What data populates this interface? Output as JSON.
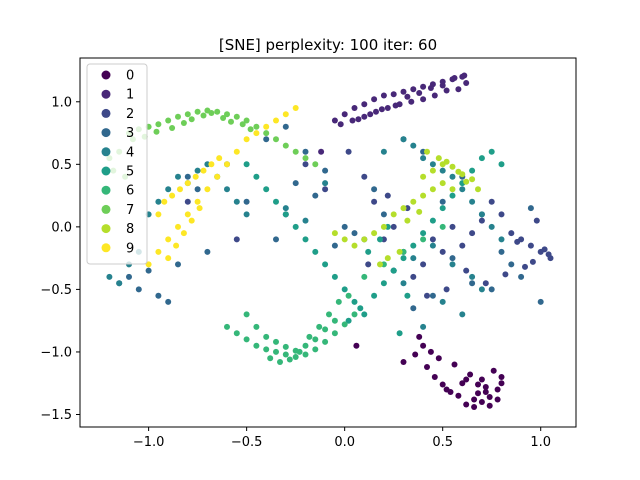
{
  "chart_data": {
    "type": "scatter",
    "title": "[SNE] perplexity: 100 iter: 60",
    "xlabel": "",
    "ylabel": "",
    "xlim": [
      -1.35,
      1.18
    ],
    "ylim": [
      -1.6,
      1.35
    ],
    "xticks": [
      -1.0,
      -0.5,
      0.0,
      0.5,
      1.0
    ],
    "xtick_labels": [
      "−1.0",
      "−0.5",
      "0.0",
      "0.5",
      "1.0"
    ],
    "yticks": [
      -1.5,
      -1.0,
      -0.5,
      0.0,
      0.5,
      1.0
    ],
    "ytick_labels": [
      "−1.5",
      "−1.0",
      "−0.5",
      "0.0",
      "0.5",
      "1.0"
    ],
    "grid": false,
    "legend_position": "top-left",
    "series": [
      {
        "name": "0",
        "color": "#440154",
        "x": [
          0.62,
          0.7,
          0.74,
          0.78,
          0.66,
          0.58,
          0.52,
          0.8,
          0.72,
          0.68,
          0.6,
          0.76,
          0.7,
          0.64,
          0.56,
          0.48,
          0.44,
          0.4,
          0.36,
          0.42,
          0.46,
          0.5,
          0.54,
          0.66,
          0.74,
          0.8,
          0.78,
          0.72,
          0.68,
          0.62,
          0.06,
          0.3,
          0.38
        ],
        "y": [
          -1.42,
          -1.4,
          -1.36,
          -1.3,
          -1.38,
          -1.35,
          -1.3,
          -1.2,
          -1.28,
          -1.33,
          -1.25,
          -1.15,
          -1.22,
          -1.18,
          -1.1,
          -1.05,
          -1.0,
          -0.95,
          -1.02,
          -1.12,
          -1.2,
          -1.26,
          -1.32,
          -1.44,
          -1.43,
          -1.25,
          -1.38,
          -1.32,
          -1.26,
          -1.22,
          -0.95,
          -1.08,
          -0.88
        ]
      },
      {
        "name": "1",
        "color": "#482878",
        "x": [
          -0.05,
          0.0,
          0.05,
          0.1,
          0.15,
          0.2,
          0.25,
          0.3,
          0.35,
          0.4,
          0.45,
          0.5,
          0.55,
          0.6,
          0.62,
          0.58,
          0.52,
          0.46,
          0.4,
          0.34,
          0.28,
          0.22,
          0.16,
          0.1,
          0.04,
          -0.02,
          0.07,
          0.13,
          0.19,
          0.26,
          0.32,
          0.38,
          0.44,
          0.5,
          0.56,
          0.61,
          -0.12
        ],
        "y": [
          0.85,
          0.9,
          0.95,
          0.98,
          1.02,
          1.05,
          1.06,
          1.08,
          1.1,
          1.12,
          1.14,
          1.16,
          1.18,
          1.2,
          1.15,
          1.1,
          1.09,
          1.05,
          1.02,
          1.0,
          0.98,
          0.95,
          0.92,
          0.88,
          0.85,
          0.82,
          0.86,
          0.9,
          0.94,
          0.97,
          1.04,
          1.07,
          1.11,
          1.13,
          1.19,
          1.21,
          0.6
        ]
      },
      {
        "name": "2",
        "color": "#3e4989",
        "x": [
          0.85,
          0.9,
          0.95,
          1.0,
          1.05,
          1.02,
          0.96,
          0.92,
          0.88,
          0.8,
          0.75,
          0.7,
          0.65,
          0.6,
          0.55,
          0.5,
          0.45,
          0.4,
          0.35,
          0.3,
          0.25,
          0.2,
          0.15,
          0.1,
          -0.1,
          -0.3,
          -0.55,
          -0.8,
          0.98,
          1.04,
          0.82,
          0.72,
          0.62,
          0.52,
          0.42,
          0.32,
          0.22,
          0.12,
          0.02,
          -0.2
        ],
        "y": [
          -0.05,
          -0.1,
          -0.15,
          -0.2,
          -0.25,
          -0.18,
          -0.28,
          -0.32,
          -0.12,
          0.1,
          0.2,
          0.05,
          -0.05,
          -0.15,
          0.0,
          -0.2,
          -0.1,
          -0.3,
          -0.4,
          -0.2,
          0.0,
          -0.1,
          0.2,
          0.4,
          0.3,
          0.1,
          -0.1,
          0.2,
          0.05,
          -0.22,
          -0.38,
          -0.45,
          -0.35,
          -0.5,
          -0.55,
          0.15,
          0.25,
          -0.3,
          0.6,
          0.5
        ]
      },
      {
        "name": "3",
        "color": "#31688e",
        "x": [
          -1.15,
          -1.1,
          -1.05,
          -1.0,
          -0.95,
          -0.9,
          -0.85,
          -0.8,
          -0.75,
          -0.7,
          -0.6,
          -0.5,
          -0.4,
          -0.3,
          -0.2,
          -0.1,
          0.0,
          0.1,
          0.2,
          0.3,
          0.4,
          0.5,
          0.6,
          0.7,
          0.8,
          0.9,
          0.95,
          1.0,
          0.85,
          0.75,
          0.65,
          0.55,
          0.45,
          0.35,
          0.25,
          0.15,
          0.05,
          -0.05,
          -0.15,
          -0.25,
          -0.35
        ],
        "y": [
          -0.45,
          -0.4,
          -0.5,
          -0.35,
          -0.55,
          -0.6,
          -0.3,
          0.4,
          0.3,
          -0.2,
          0.5,
          0.2,
          0.7,
          0.8,
          0.6,
          0.45,
          0.0,
          -0.1,
          0.1,
          0.7,
          0.6,
          0.2,
          0.4,
          0.1,
          -0.2,
          -0.4,
          0.15,
          -0.6,
          -0.3,
          -0.5,
          -0.45,
          -0.25,
          -0.55,
          -0.65,
          -0.35,
          0.3,
          -0.05,
          -0.15,
          0.25,
          0.35,
          -0.1
        ]
      },
      {
        "name": "4",
        "color": "#26828e",
        "x": [
          -1.2,
          -1.15,
          -1.1,
          -1.05,
          -1.0,
          -0.95,
          -0.9,
          -0.85,
          -0.8,
          -0.75,
          -0.7,
          -0.65,
          -0.6,
          -0.55,
          -0.5,
          0.2,
          0.3,
          0.35,
          0.4,
          0.45,
          0.5,
          0.55,
          0.6,
          0.65,
          0.7,
          0.75,
          0.8,
          0.7,
          0.6,
          0.5,
          0.4,
          0.3,
          0.25,
          0.35,
          0.45,
          0.55,
          0.65,
          -0.3,
          -0.2,
          -0.1
        ],
        "y": [
          -0.4,
          -0.45,
          -0.3,
          -0.2,
          0.1,
          0.2,
          0.3,
          0.4,
          0.35,
          0.45,
          0.5,
          0.4,
          0.3,
          0.2,
          0.1,
          0.6,
          0.7,
          0.65,
          0.55,
          0.5,
          0.45,
          0.4,
          0.3,
          0.2,
          0.1,
          0.0,
          -0.1,
          -0.5,
          -0.7,
          -0.6,
          -0.8,
          -0.45,
          -0.35,
          -0.25,
          -0.15,
          -0.3,
          -0.4,
          0.15,
          0.05,
          0.35
        ]
      },
      {
        "name": "5",
        "color": "#1f9e89",
        "x": [
          -0.1,
          -0.05,
          0.0,
          0.05,
          0.1,
          0.15,
          0.2,
          0.25,
          0.3,
          0.35,
          0.4,
          0.45,
          0.5,
          0.55,
          0.6,
          0.65,
          0.7,
          0.75,
          0.8,
          -0.15,
          -0.2,
          -0.25,
          -0.3,
          -0.35,
          -0.4,
          -0.45,
          -0.5,
          0.02,
          0.08,
          0.12,
          0.18,
          0.22,
          0.28,
          0.32
        ],
        "y": [
          -0.3,
          -0.4,
          -0.5,
          -0.6,
          -0.7,
          -0.55,
          -0.45,
          -0.35,
          -0.25,
          -0.15,
          -0.05,
          0.05,
          0.15,
          0.25,
          0.35,
          0.45,
          0.55,
          0.6,
          0.5,
          -0.2,
          -0.1,
          0.0,
          0.1,
          0.2,
          0.3,
          0.4,
          0.5,
          -0.75,
          -0.65,
          -0.2,
          -0.1,
          0.0,
          -0.85,
          -0.55
        ]
      },
      {
        "name": "6",
        "color": "#35b779",
        "x": [
          -0.55,
          -0.5,
          -0.45,
          -0.4,
          -0.35,
          -0.3,
          -0.25,
          -0.2,
          -0.15,
          -0.1,
          -0.05,
          0.0,
          0.05,
          -0.45,
          -0.4,
          -0.35,
          -0.3,
          -0.25,
          -0.2,
          -0.15,
          -0.1,
          -0.05,
          -0.38,
          -0.33,
          -0.28,
          -0.23,
          -0.18,
          -0.13,
          -0.08,
          -0.03,
          0.02,
          -0.6,
          -0.5,
          0.1,
          0.2,
          0.3,
          0.4,
          0.5
        ],
        "y": [
          -0.85,
          -0.9,
          -0.95,
          -0.98,
          -1.0,
          -1.02,
          -1.04,
          -1.02,
          -0.98,
          -0.92,
          -0.85,
          -0.78,
          -0.7,
          -0.8,
          -0.88,
          -0.92,
          -0.96,
          -0.99,
          -0.95,
          -0.9,
          -0.82,
          -0.75,
          -1.05,
          -1.08,
          -1.06,
          -1.0,
          -0.88,
          -0.8,
          -0.7,
          -0.6,
          -0.55,
          -0.8,
          -0.7,
          -0.4,
          -0.3,
          -0.2,
          -0.1,
          0.0
        ]
      },
      {
        "name": "7",
        "color": "#6ece58",
        "x": [
          -1.1,
          -1.05,
          -1.0,
          -0.95,
          -0.9,
          -0.85,
          -0.8,
          -0.75,
          -0.7,
          -0.65,
          -0.6,
          -0.55,
          -0.5,
          -0.45,
          -0.4,
          -0.35,
          -0.3,
          -0.25,
          -0.2,
          -0.15,
          -1.08,
          -1.02,
          -0.96,
          -0.88,
          -0.82,
          -0.78,
          -0.72,
          -0.68,
          -0.62,
          -0.58,
          -0.52,
          -0.48,
          -1.15,
          -1.2,
          -1.18,
          -1.12
        ],
        "y": [
          0.75,
          0.78,
          0.8,
          0.82,
          0.85,
          0.88,
          0.9,
          0.92,
          0.93,
          0.92,
          0.9,
          0.88,
          0.85,
          0.8,
          0.75,
          0.7,
          0.65,
          0.6,
          0.55,
          0.5,
          0.7,
          0.72,
          0.76,
          0.79,
          0.83,
          0.86,
          0.89,
          0.91,
          0.87,
          0.84,
          0.82,
          0.78,
          0.6,
          0.55,
          0.45,
          0.4
        ]
      },
      {
        "name": "8",
        "color": "#b5de2b",
        "x": [
          0.4,
          0.45,
          0.5,
          0.55,
          0.6,
          0.65,
          0.55,
          0.5,
          0.45,
          0.4,
          0.35,
          0.3,
          0.25,
          0.2,
          0.15,
          0.1,
          0.05,
          0.0,
          -0.05,
          0.48,
          0.52,
          0.58,
          0.62,
          0.68,
          0.42,
          0.38,
          0.32,
          0.28,
          0.22,
          0.18
        ],
        "y": [
          0.4,
          0.45,
          0.5,
          0.48,
          0.42,
          0.38,
          0.3,
          0.35,
          0.3,
          0.25,
          0.2,
          0.15,
          0.1,
          0.0,
          -0.05,
          -0.1,
          -0.15,
          -0.1,
          -0.05,
          0.55,
          0.52,
          0.44,
          0.36,
          0.3,
          0.6,
          0.12,
          0.05,
          -0.2,
          -0.25,
          -0.3
        ]
      },
      {
        "name": "9",
        "color": "#fde725",
        "x": [
          -1.0,
          -0.95,
          -0.9,
          -0.85,
          -0.8,
          -0.75,
          -0.7,
          -0.65,
          -0.6,
          -0.55,
          -0.5,
          -0.45,
          -0.4,
          -0.35,
          -0.3,
          -0.25,
          -0.95,
          -0.92,
          -0.88,
          -0.84,
          -0.8,
          -0.76,
          -0.72,
          -0.68,
          -0.64,
          -0.9,
          -0.86,
          -0.82,
          -0.78,
          -0.74
        ],
        "y": [
          -0.3,
          -0.2,
          -0.1,
          0.0,
          0.1,
          0.2,
          0.3,
          0.4,
          0.5,
          0.6,
          0.7,
          0.75,
          0.8,
          0.85,
          0.9,
          0.95,
          0.1,
          0.2,
          0.25,
          0.3,
          0.35,
          0.4,
          0.45,
          0.5,
          0.55,
          -0.25,
          -0.15,
          -0.05,
          0.05,
          0.15
        ]
      }
    ]
  }
}
